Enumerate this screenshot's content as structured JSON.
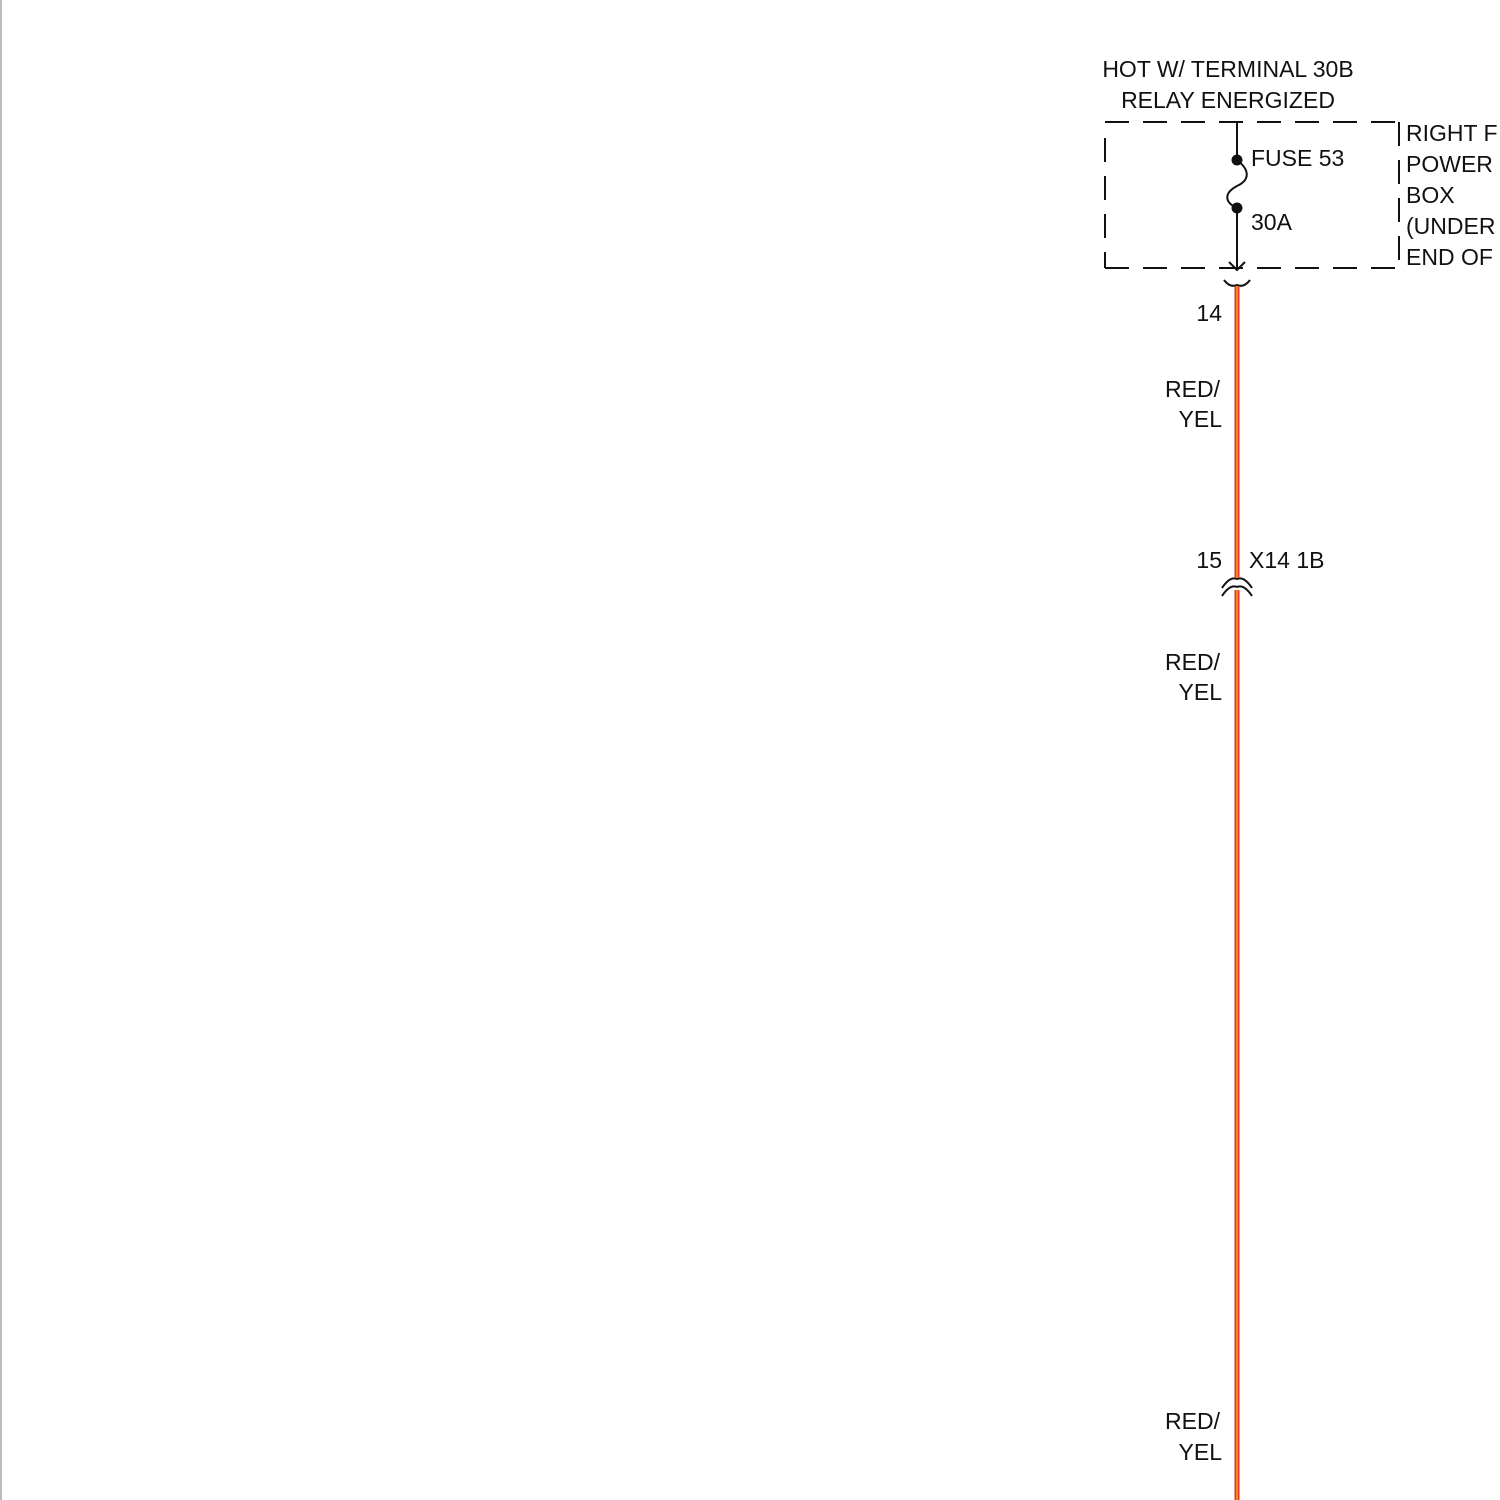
{
  "header": {
    "line1": "HOT W/ TERMINAL 30B",
    "line2": "RELAY ENERGIZED"
  },
  "component": {
    "label_lines": [
      "RIGHT F",
      "POWER",
      "BOX",
      "(UNDER",
      "END OF"
    ],
    "fuse_name": "FUSE 53",
    "fuse_rating": "30A"
  },
  "connectors": {
    "top_pin": "14",
    "inline_pin": "15",
    "inline_name": "X14 1B"
  },
  "wires": {
    "segment1": {
      "color_line1": "RED/",
      "color_line2": "YEL"
    },
    "segment2": {
      "color_line1": "RED/",
      "color_line2": "YEL"
    },
    "segment3": {
      "color_line1": "RED/",
      "color_line2": "YEL"
    }
  },
  "colors": {
    "wire_primary": "#e8352b",
    "wire_stripe": "#f2a01a",
    "line": "#111111"
  }
}
